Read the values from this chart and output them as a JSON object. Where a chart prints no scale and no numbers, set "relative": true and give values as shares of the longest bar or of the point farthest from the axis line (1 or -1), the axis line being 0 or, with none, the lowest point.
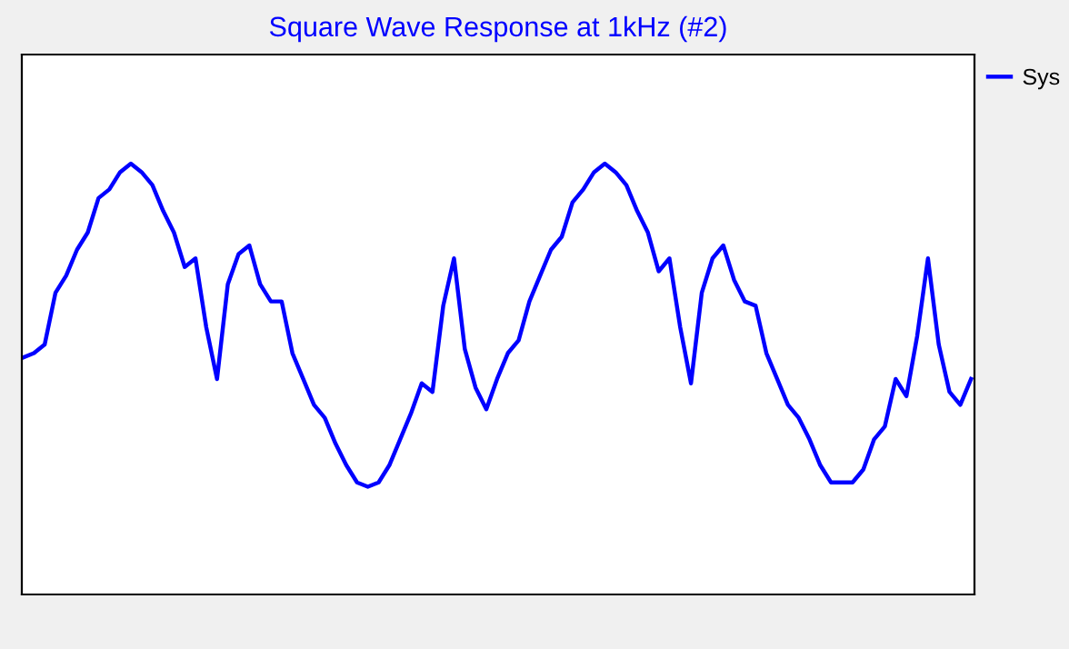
{
  "chart_data": {
    "type": "line",
    "title": "Square Wave Response at 1kHz (#2)",
    "relative": true,
    "legend": "top right",
    "marker": "none",
    "line_style": "solid",
    "categories": [
      null,
      null,
      null,
      null,
      null,
      null,
      null,
      null,
      null,
      null,
      null,
      null,
      null,
      null,
      null,
      null,
      null,
      null,
      null,
      null,
      null,
      null,
      null,
      null,
      null,
      null,
      null,
      null,
      null,
      null,
      null,
      null,
      null,
      null,
      null,
      null,
      null,
      null,
      null,
      null,
      null,
      null,
      null,
      null,
      null,
      null,
      null,
      null,
      null,
      null,
      null,
      null,
      null,
      null,
      null,
      null,
      null,
      null,
      null,
      null,
      null,
      null,
      null,
      null,
      null,
      null,
      null,
      null,
      null,
      null,
      null,
      null,
      null,
      null,
      null,
      null,
      null,
      null,
      null,
      null,
      null,
      null,
      null,
      null,
      null,
      null,
      null,
      null,
      null
    ],
    "series": [
      {
        "name": "Sys",
        "color": "#0000ff",
        "values": [
          0.55,
          0.56,
          0.58,
          0.7,
          0.74,
          0.8,
          0.84,
          0.92,
          0.94,
          0.98,
          1.0,
          0.98,
          0.95,
          0.89,
          0.84,
          0.76,
          0.78,
          0.62,
          0.5,
          0.72,
          0.79,
          0.81,
          0.72,
          0.68,
          0.68,
          0.56,
          0.5,
          0.44,
          0.41,
          0.35,
          0.3,
          0.26,
          0.25,
          0.26,
          0.3,
          0.36,
          0.42,
          0.49,
          0.47,
          0.67,
          0.78,
          0.57,
          0.48,
          0.43,
          0.5,
          0.56,
          0.59,
          0.68,
          0.74,
          0.8,
          0.83,
          0.91,
          0.94,
          0.98,
          1.0,
          0.98,
          0.95,
          0.89,
          0.84,
          0.75,
          0.78,
          0.62,
          0.49,
          0.7,
          0.78,
          0.81,
          0.73,
          0.68,
          0.67,
          0.56,
          0.5,
          0.44,
          0.41,
          0.36,
          0.3,
          0.26,
          0.26,
          0.26,
          0.29,
          0.36,
          0.39,
          0.5,
          0.46,
          0.6,
          0.78,
          0.58,
          0.47,
          0.44,
          0.5
        ]
      }
    ]
  }
}
